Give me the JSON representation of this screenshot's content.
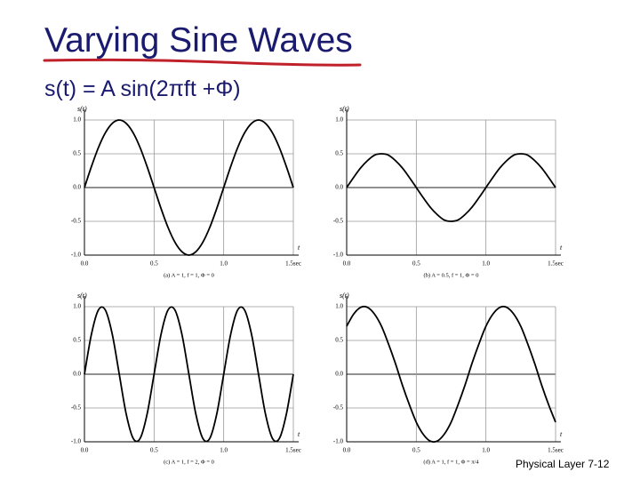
{
  "title": "Varying Sine Waves",
  "subtitle": "s(t) = A sin(2πft +Φ)",
  "footer": "Physical Layer 7-12",
  "chart_data": [
    {
      "type": "line",
      "caption": "(a) A = 1, f = 1, Φ = 0",
      "x_label": "t",
      "y_label": "s(t)",
      "color": "#000000",
      "grid": true,
      "xlim": [
        0,
        1.5
      ],
      "xticks": [
        {
          "value": 0,
          "label": "0.0"
        },
        {
          "value": 0.5,
          "label": "0.5"
        },
        {
          "value": 1,
          "label": "1.0"
        },
        {
          "value": 1.5,
          "label": "1.5sec"
        }
      ],
      "ylim": [
        -1,
        1
      ],
      "yticks": [
        {
          "value": -1,
          "label": "-1.0"
        },
        {
          "value": -0.5,
          "label": "-0.5"
        },
        {
          "value": 0,
          "label": "0.0"
        },
        {
          "value": 0.5,
          "label": "0.5"
        },
        {
          "value": 1,
          "label": "1.0"
        }
      ],
      "x": [
        0,
        0.05,
        0.1,
        0.15,
        0.2,
        0.25,
        0.3,
        0.35,
        0.4,
        0.45,
        0.5,
        0.55,
        0.6,
        0.65,
        0.7,
        0.75,
        0.8,
        0.85,
        0.9,
        0.95,
        1,
        1.05,
        1.1,
        1.15,
        1.2,
        1.25,
        1.3,
        1.35,
        1.4,
        1.45,
        1.5
      ],
      "values": [
        0,
        0.31,
        0.59,
        0.81,
        0.95,
        1,
        0.95,
        0.81,
        0.59,
        0.31,
        0,
        -0.31,
        -0.59,
        -0.81,
        -0.95,
        -1,
        -0.95,
        -0.81,
        -0.59,
        -0.31,
        0,
        0.31,
        0.59,
        0.81,
        0.95,
        1,
        0.95,
        0.81,
        0.59,
        0.31,
        0
      ]
    },
    {
      "type": "line",
      "caption": "(b) A = 0.5, f = 1, Φ = 0",
      "x_label": "t",
      "y_label": "s(t)",
      "color": "#000000",
      "grid": true,
      "xlim": [
        0,
        1.5
      ],
      "xticks": [
        {
          "value": 0,
          "label": "0.0"
        },
        {
          "value": 0.5,
          "label": "0.5"
        },
        {
          "value": 1,
          "label": "1.0"
        },
        {
          "value": 1.5,
          "label": "1.5sec"
        }
      ],
      "ylim": [
        -1,
        1
      ],
      "yticks": [
        {
          "value": -1,
          "label": "-1.0"
        },
        {
          "value": -0.5,
          "label": "-0.5"
        },
        {
          "value": 0,
          "label": "0.0"
        },
        {
          "value": 0.5,
          "label": "0.5"
        },
        {
          "value": 1,
          "label": "1.0"
        }
      ],
      "x": [
        0,
        0.05,
        0.1,
        0.15,
        0.2,
        0.25,
        0.3,
        0.35,
        0.4,
        0.45,
        0.5,
        0.55,
        0.6,
        0.65,
        0.7,
        0.75,
        0.8,
        0.85,
        0.9,
        0.95,
        1,
        1.05,
        1.1,
        1.15,
        1.2,
        1.25,
        1.3,
        1.35,
        1.4,
        1.45,
        1.5
      ],
      "values": [
        0,
        0.15,
        0.29,
        0.4,
        0.48,
        0.5,
        0.48,
        0.4,
        0.29,
        0.15,
        0,
        -0.15,
        -0.29,
        -0.4,
        -0.48,
        -0.5,
        -0.48,
        -0.4,
        -0.29,
        -0.15,
        0,
        0.15,
        0.29,
        0.4,
        0.48,
        0.5,
        0.48,
        0.4,
        0.29,
        0.15,
        0
      ]
    },
    {
      "type": "line",
      "caption": "(c) A = 1, f = 2, Φ = 0",
      "x_label": "t",
      "y_label": "s(t)",
      "color": "#000000",
      "grid": true,
      "xlim": [
        0,
        1.5
      ],
      "xticks": [
        {
          "value": 0,
          "label": "0.0"
        },
        {
          "value": 0.5,
          "label": "0.5"
        },
        {
          "value": 1,
          "label": "1.0"
        },
        {
          "value": 1.5,
          "label": "1.5sec"
        }
      ],
      "ylim": [
        -1,
        1
      ],
      "yticks": [
        {
          "value": -1,
          "label": "-1.0"
        },
        {
          "value": -0.5,
          "label": "-0.5"
        },
        {
          "value": 0,
          "label": "0.0"
        },
        {
          "value": 0.5,
          "label": "0.5"
        },
        {
          "value": 1,
          "label": "1.0"
        }
      ],
      "x": [
        0,
        0.05,
        0.1,
        0.15,
        0.2,
        0.25,
        0.3,
        0.35,
        0.4,
        0.45,
        0.5,
        0.55,
        0.6,
        0.65,
        0.7,
        0.75,
        0.8,
        0.85,
        0.9,
        0.95,
        1,
        1.05,
        1.1,
        1.15,
        1.2,
        1.25,
        1.3,
        1.35,
        1.4,
        1.45,
        1.5
      ],
      "values": [
        0,
        0.59,
        0.95,
        0.95,
        0.59,
        0,
        -0.59,
        -0.95,
        -0.95,
        -0.59,
        0,
        0.59,
        0.95,
        0.95,
        0.59,
        0,
        -0.59,
        -0.95,
        -0.95,
        -0.59,
        0,
        0.59,
        0.95,
        0.95,
        0.59,
        0,
        -0.59,
        -0.95,
        -0.95,
        -0.59,
        0
      ]
    },
    {
      "type": "line",
      "caption": "(d) A = 1, f = 1, Φ = π/4",
      "x_label": "t",
      "y_label": "s(t)",
      "color": "#000000",
      "grid": true,
      "xlim": [
        0,
        1.5
      ],
      "xticks": [
        {
          "value": 0,
          "label": "0.0"
        },
        {
          "value": 0.5,
          "label": "0.5"
        },
        {
          "value": 1,
          "label": "1.0"
        },
        {
          "value": 1.5,
          "label": "1.5sec"
        }
      ],
      "ylim": [
        -1,
        1
      ],
      "yticks": [
        {
          "value": -1,
          "label": "-1.0"
        },
        {
          "value": -0.5,
          "label": "-0.5"
        },
        {
          "value": 0,
          "label": "0.0"
        },
        {
          "value": 0.5,
          "label": "0.5"
        },
        {
          "value": 1,
          "label": "1.0"
        }
      ],
      "x": [
        0,
        0.05,
        0.1,
        0.15,
        0.2,
        0.25,
        0.3,
        0.35,
        0.4,
        0.45,
        0.5,
        0.55,
        0.6,
        0.65,
        0.7,
        0.75,
        0.8,
        0.85,
        0.9,
        0.95,
        1,
        1.05,
        1.1,
        1.15,
        1.2,
        1.25,
        1.3,
        1.35,
        1.4,
        1.45,
        1.5
      ],
      "values": [
        0.71,
        0.89,
        0.99,
        0.99,
        0.89,
        0.71,
        0.45,
        0.16,
        -0.16,
        -0.45,
        -0.71,
        -0.89,
        -0.99,
        -0.99,
        -0.89,
        -0.71,
        -0.45,
        -0.16,
        0.16,
        0.45,
        0.71,
        0.89,
        0.99,
        0.99,
        0.89,
        0.71,
        0.45,
        0.16,
        -0.16,
        -0.45,
        -0.71
      ]
    }
  ]
}
